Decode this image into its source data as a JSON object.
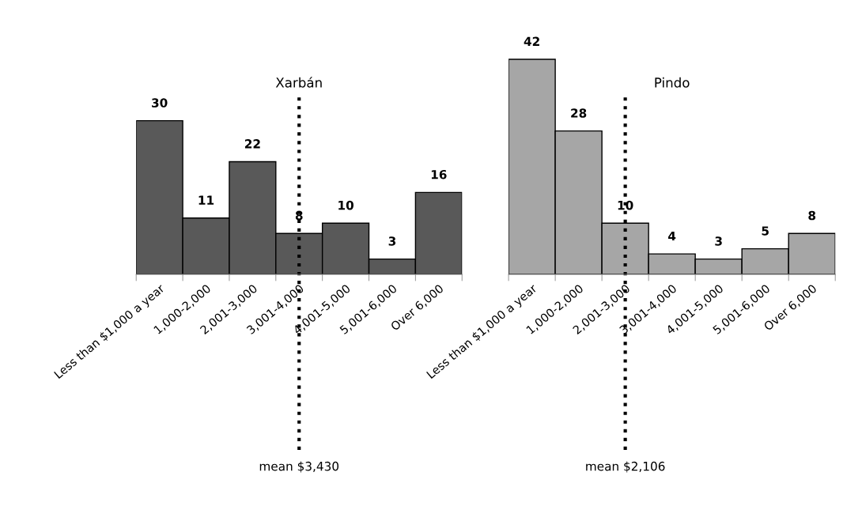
{
  "chart_data": [
    {
      "type": "bar",
      "title": "Xarbán",
      "categories": [
        "Less than $1,000 a year",
        "1,000-2,000",
        "2,001-3,000",
        "3,001-4,000",
        "4,001-5,000",
        "5,001-6,000",
        "Over 6,000"
      ],
      "values": [
        30,
        11,
        22,
        8,
        10,
        3,
        16
      ],
      "color": "#595959",
      "data_labels": true,
      "grid": false,
      "legend": false,
      "tick_labels": "x",
      "ref_lines": [
        {
          "axis": "x",
          "value": "3,001-4,000",
          "label": "mean $3,430",
          "color": "#000000",
          "line_style": "dotted"
        }
      ]
    },
    {
      "type": "bar",
      "title": "Pindo",
      "categories": [
        "Less than $1,000 a year",
        "1,000-2,000",
        "2,001-3,000",
        "3,001-4,000",
        "4,001-5,000",
        "5,001-6,000",
        "Over 6,000"
      ],
      "values": [
        42,
        28,
        10,
        4,
        3,
        5,
        8
      ],
      "color": "#a6a6a6",
      "data_labels": true,
      "grid": false,
      "legend": false,
      "tick_labels": "x",
      "ref_lines": [
        {
          "axis": "x",
          "value": "2,001-3,000",
          "label": "mean $2,106",
          "color": "#000000",
          "line_style": "dotted"
        }
      ]
    }
  ]
}
